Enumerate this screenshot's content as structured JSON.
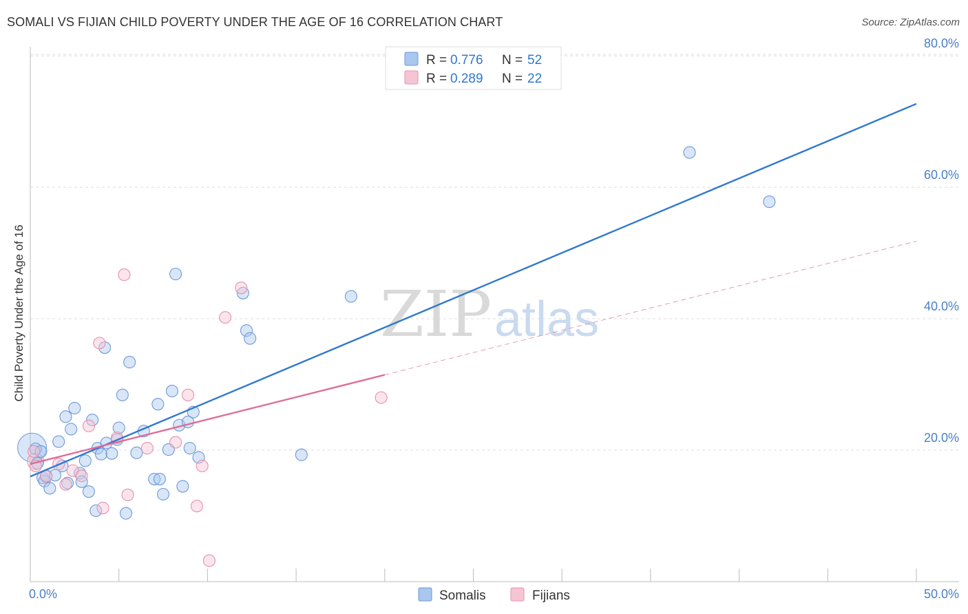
{
  "chart_data": {
    "type": "scatter",
    "title": "SOMALI VS FIJIAN CHILD POVERTY UNDER THE AGE OF 16 CORRELATION CHART",
    "source": "Source: ZipAtlas.com",
    "xlabel": "",
    "ylabel": "Child Poverty Under the Age of 16",
    "xlim": [
      0,
      50
    ],
    "ylim": [
      0,
      82
    ],
    "x_tick_labels": [
      {
        "value": 0,
        "label": "0.0%"
      },
      {
        "value": 50,
        "label": "50.0%"
      }
    ],
    "y_tick_labels": [
      {
        "value": 20,
        "label": "20.0%"
      },
      {
        "value": 40,
        "label": "40.0%"
      },
      {
        "value": 60,
        "label": "60.0%"
      },
      {
        "value": 80,
        "label": "80.0%"
      }
    ],
    "gridlines": [
      20,
      40,
      60,
      80
    ],
    "watermark": {
      "part1": "ZIP",
      "part2": "atlas"
    },
    "legend": {
      "placement": "top-center",
      "entries": [
        {
          "r_label": "R =",
          "r_value": "0.776",
          "n_label": "N =",
          "n_value": "52"
        },
        {
          "r_label": "R =",
          "r_value": "0.289",
          "n_label": "N =",
          "n_value": "22"
        }
      ]
    },
    "series": [
      {
        "name": "Somalis",
        "color": "#a9c7ef",
        "edge": "#6d9ad6",
        "line_color": "#2f77d0",
        "trend": {
          "x0": 0,
          "y0": 16.0,
          "x1": 50,
          "y1": 72.7,
          "solid_to": 50
        },
        "points": [
          [
            0.3,
            20.2
          ],
          [
            0.4,
            18.0
          ],
          [
            0.6,
            19.8
          ],
          [
            0.7,
            15.8
          ],
          [
            0.8,
            15.3
          ],
          [
            0.9,
            16.1
          ],
          [
            1.1,
            14.2
          ],
          [
            1.4,
            16.2
          ],
          [
            1.6,
            21.3
          ],
          [
            1.8,
            17.6
          ],
          [
            2.0,
            25.1
          ],
          [
            2.1,
            15.0
          ],
          [
            2.3,
            23.2
          ],
          [
            2.5,
            26.4
          ],
          [
            2.8,
            16.5
          ],
          [
            2.9,
            15.2
          ],
          [
            3.1,
            18.4
          ],
          [
            3.3,
            13.7
          ],
          [
            3.5,
            24.6
          ],
          [
            3.7,
            10.8
          ],
          [
            3.8,
            20.3
          ],
          [
            4.0,
            19.4
          ],
          [
            4.2,
            35.6
          ],
          [
            4.3,
            21.1
          ],
          [
            4.6,
            19.5
          ],
          [
            4.9,
            21.6
          ],
          [
            5.0,
            23.4
          ],
          [
            5.2,
            28.4
          ],
          [
            5.4,
            10.4
          ],
          [
            5.6,
            33.4
          ],
          [
            6.0,
            19.6
          ],
          [
            6.4,
            22.9
          ],
          [
            7.0,
            15.6
          ],
          [
            7.2,
            27.0
          ],
          [
            7.3,
            15.6
          ],
          [
            7.5,
            13.3
          ],
          [
            7.8,
            20.1
          ],
          [
            8.0,
            29.0
          ],
          [
            8.2,
            46.8
          ],
          [
            8.4,
            23.8
          ],
          [
            8.6,
            14.5
          ],
          [
            8.9,
            24.3
          ],
          [
            9.0,
            20.3
          ],
          [
            9.2,
            25.8
          ],
          [
            9.5,
            18.9
          ],
          [
            12.0,
            43.9
          ],
          [
            12.2,
            38.2
          ],
          [
            12.4,
            37.0
          ],
          [
            15.3,
            19.3
          ],
          [
            18.1,
            43.4
          ],
          [
            37.2,
            65.3
          ],
          [
            41.7,
            57.8
          ]
        ]
      },
      {
        "name": "Fijians",
        "color": "#f6c5d3",
        "edge": "#e591ad",
        "line_color": "#e06c96",
        "trend": {
          "x0": 0,
          "y0": 17.9,
          "x1": 50,
          "y1": 51.8,
          "solid_to": 20
        },
        "points": [
          [
            0.2,
            19.8
          ],
          [
            0.3,
            17.6
          ],
          [
            0.9,
            16.0
          ],
          [
            1.6,
            17.9
          ],
          [
            2.0,
            14.8
          ],
          [
            2.4,
            16.9
          ],
          [
            2.9,
            16.1
          ],
          [
            3.3,
            23.7
          ],
          [
            3.9,
            36.3
          ],
          [
            4.1,
            11.2
          ],
          [
            4.9,
            21.9
          ],
          [
            5.3,
            46.7
          ],
          [
            5.5,
            13.2
          ],
          [
            6.6,
            20.3
          ],
          [
            8.2,
            21.2
          ],
          [
            8.9,
            28.4
          ],
          [
            9.4,
            11.5
          ],
          [
            9.7,
            17.6
          ],
          [
            10.1,
            3.2
          ],
          [
            11.0,
            40.2
          ],
          [
            11.9,
            44.7
          ],
          [
            19.8,
            28.0
          ]
        ]
      }
    ]
  }
}
